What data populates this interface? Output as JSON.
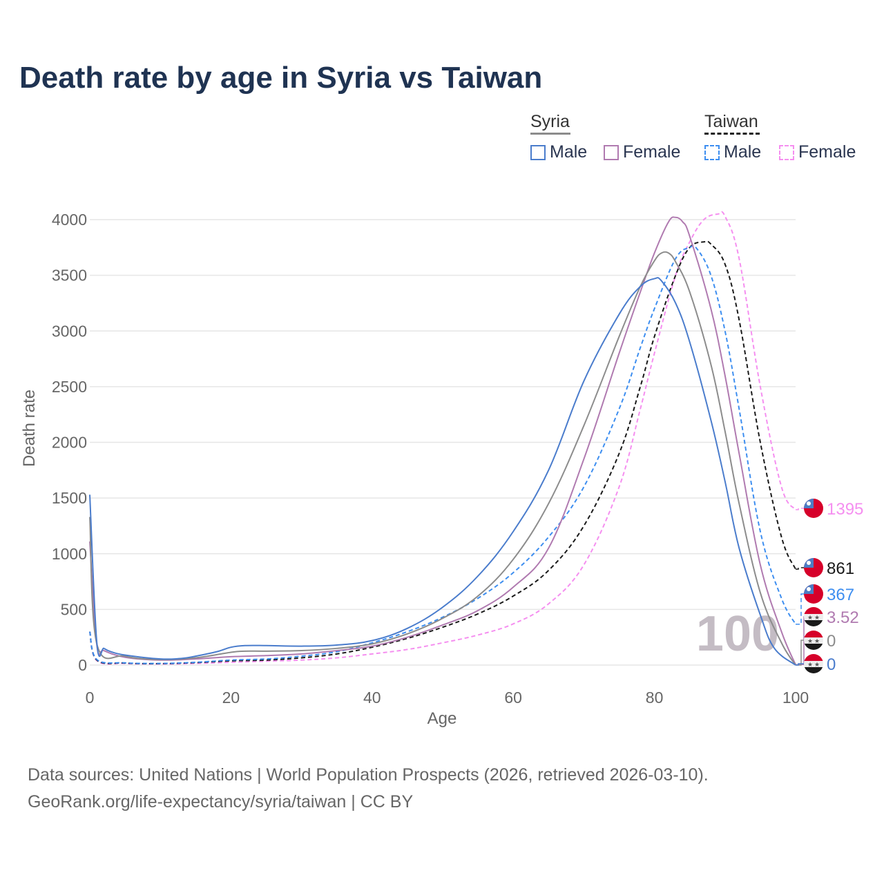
{
  "title": "Death rate by age in Syria vs Taiwan",
  "legend": {
    "groups": [
      {
        "name": "Syria",
        "items": [
          {
            "label": "Male",
            "color": "#4a7ccc",
            "dashed": false
          },
          {
            "label": "Female",
            "color": "#b07ab0",
            "dashed": false
          }
        ]
      },
      {
        "name": "Taiwan",
        "items": [
          {
            "label": "Male",
            "color": "#3d8ef0",
            "dashed": true
          },
          {
            "label": "Female",
            "color": "#f58ff0",
            "dashed": true
          }
        ]
      }
    ]
  },
  "footer": {
    "line1": "Data sources: United Nations | World Population Prospects (2026, retrieved 2026-03-10).",
    "line2": "GeoRank.org/life-expectancy/syria/taiwan | CC BY"
  },
  "chart_data": {
    "type": "line",
    "title": "Death rate by age in Syria vs Taiwan",
    "xlabel": "Age",
    "ylabel": "Death rate",
    "xlim": [
      0,
      100
    ],
    "ylim": [
      0,
      4000
    ],
    "xticks": [
      0,
      20,
      40,
      60,
      80,
      100
    ],
    "yticks": [
      0,
      500,
      1000,
      1500,
      2000,
      2500,
      3000,
      3500,
      4000
    ],
    "grid": true,
    "watermark": "100",
    "series": [
      {
        "name": "Taiwan Female",
        "country": "taiwan",
        "color": "#f58ff0",
        "dashed": true,
        "end_label": "1395",
        "x": [
          0,
          1,
          5,
          10,
          15,
          20,
          25,
          30,
          35,
          40,
          45,
          50,
          55,
          60,
          65,
          70,
          75,
          78,
          80,
          83,
          85,
          87,
          89,
          90,
          92,
          95,
          98,
          100
        ],
        "y": [
          300,
          40,
          15,
          10,
          15,
          25,
          35,
          45,
          65,
          100,
          140,
          200,
          270,
          370,
          550,
          900,
          1600,
          2300,
          2800,
          3500,
          3800,
          4000,
          4050,
          4030,
          3650,
          2500,
          1600,
          1395
        ]
      },
      {
        "name": "Taiwan Total",
        "country": "taiwan",
        "color": "#1a1a1a",
        "dashed": true,
        "end_label": "861",
        "x": [
          0,
          1,
          5,
          10,
          15,
          20,
          25,
          30,
          35,
          40,
          45,
          50,
          55,
          60,
          65,
          70,
          75,
          78,
          80,
          83,
          85,
          87,
          88,
          90,
          92,
          95,
          98,
          100
        ],
        "y": [
          300,
          45,
          18,
          13,
          22,
          38,
          45,
          65,
          100,
          160,
          240,
          340,
          460,
          620,
          850,
          1250,
          1900,
          2500,
          2950,
          3500,
          3750,
          3800,
          3780,
          3600,
          3100,
          2000,
          1150,
          861
        ]
      },
      {
        "name": "Taiwan Male",
        "country": "taiwan",
        "color": "#3d8ef0",
        "dashed": true,
        "end_label": "367",
        "x": [
          0,
          1,
          5,
          10,
          15,
          20,
          25,
          30,
          35,
          40,
          45,
          50,
          55,
          60,
          65,
          70,
          75,
          78,
          80,
          83,
          85,
          86,
          88,
          90,
          92,
          95,
          98,
          100
        ],
        "y": [
          300,
          50,
          20,
          15,
          25,
          45,
          55,
          80,
          120,
          200,
          300,
          430,
          600,
          830,
          1150,
          1600,
          2300,
          2850,
          3200,
          3650,
          3750,
          3740,
          3500,
          3000,
          2300,
          1200,
          600,
          367
        ]
      },
      {
        "name": "Syria Female",
        "country": "syria",
        "color": "#b07ab0",
        "dashed": false,
        "end_label": "3.52",
        "x": [
          0,
          1,
          2,
          5,
          10,
          15,
          20,
          25,
          30,
          35,
          40,
          45,
          50,
          55,
          60,
          65,
          70,
          75,
          78,
          80,
          82,
          83,
          84,
          85,
          88,
          90,
          92,
          95,
          98,
          100
        ],
        "y": [
          1110,
          180,
          130,
          70,
          45,
          55,
          75,
          85,
          100,
          130,
          170,
          250,
          360,
          490,
          700,
          1050,
          1850,
          2800,
          3350,
          3700,
          3980,
          4020,
          3980,
          3850,
          3200,
          2600,
          1900,
          900,
          300,
          3.52
        ]
      },
      {
        "name": "Syria Total",
        "country": "syria",
        "color": "#8c8c8c",
        "dashed": false,
        "end_label": "0",
        "x": [
          0,
          1,
          5,
          10,
          15,
          20,
          22,
          25,
          30,
          35,
          40,
          45,
          50,
          55,
          60,
          65,
          70,
          75,
          78,
          80,
          81,
          82,
          83,
          85,
          88,
          90,
          92,
          95,
          98,
          100
        ],
        "y": [
          1330,
          190,
          80,
          50,
          65,
          115,
          125,
          125,
          130,
          150,
          190,
          280,
          420,
          620,
          950,
          1450,
          2150,
          2950,
          3400,
          3630,
          3700,
          3700,
          3620,
          3350,
          2700,
          2100,
          1450,
          650,
          200,
          0
        ]
      },
      {
        "name": "Syria Male",
        "country": "syria",
        "color": "#4a7ccc",
        "dashed": false,
        "end_label": "0",
        "x": [
          0,
          1,
          2,
          3,
          5,
          10,
          13,
          15,
          18,
          20,
          22,
          25,
          30,
          35,
          40,
          45,
          50,
          55,
          60,
          65,
          70,
          75,
          78,
          80,
          81,
          83,
          85,
          88,
          90,
          92,
          95,
          97,
          100
        ],
        "y": [
          1530,
          200,
          150,
          120,
          90,
          55,
          60,
          80,
          120,
          160,
          175,
          175,
          170,
          180,
          220,
          330,
          520,
          800,
          1200,
          1750,
          2550,
          3150,
          3400,
          3470,
          3450,
          3250,
          2900,
          2200,
          1650,
          1050,
          450,
          150,
          0
        ]
      }
    ]
  }
}
